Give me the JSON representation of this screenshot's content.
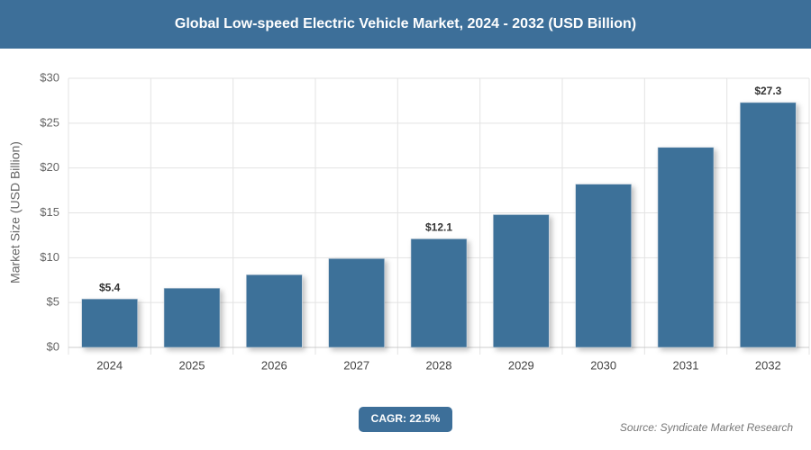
{
  "chart_data": {
    "type": "bar",
    "title": "Global Low-speed Electric Vehicle Market, 2024 - 2032 (USD Billion)",
    "y_label": "Market Size (USD Billion)",
    "categories": [
      "2024",
      "2025",
      "2026",
      "2027",
      "2028",
      "2029",
      "2030",
      "2031",
      "2032"
    ],
    "values": [
      5.4,
      6.6,
      8.1,
      9.9,
      12.1,
      14.8,
      18.2,
      22.3,
      27.3
    ],
    "value_labels": [
      "$5.4",
      null,
      null,
      null,
      "$12.1",
      null,
      null,
      null,
      "$27.3"
    ],
    "color": "#3e7199",
    "ylim": [
      0,
      30
    ],
    "yticks": [
      {
        "value": 0,
        "label": "$0"
      },
      {
        "value": 5,
        "label": "$5"
      },
      {
        "value": 10,
        "label": "$10"
      },
      {
        "value": 15,
        "label": "$15"
      },
      {
        "value": 20,
        "label": "$20"
      },
      {
        "value": 25,
        "label": "$25"
      },
      {
        "value": 30,
        "label": "$30"
      }
    ],
    "grid": true,
    "cagr": "CAGR: 22.5%",
    "source": "Source: Syndicate Market Research"
  }
}
